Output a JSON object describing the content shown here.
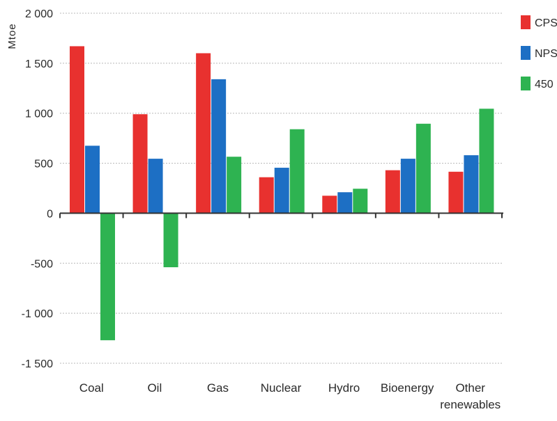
{
  "chart_data": {
    "type": "bar",
    "ylabel": "Mtoe",
    "categories": [
      "Coal",
      "Oil",
      "Gas",
      "Nuclear",
      "Hydro",
      "Bioenergy",
      "Other renewables"
    ],
    "category_lines": [
      [
        "Coal"
      ],
      [
        "Oil"
      ],
      [
        "Gas"
      ],
      [
        "Nuclear"
      ],
      [
        "Hydro"
      ],
      [
        "Bioenergy"
      ],
      [
        "Other",
        "renewables"
      ]
    ],
    "series": [
      {
        "name": "CPS",
        "color": "#e8312f",
        "values": [
          1670,
          990,
          1600,
          360,
          175,
          430,
          415
        ]
      },
      {
        "name": "NPS",
        "color": "#1d6fc4",
        "values": [
          675,
          545,
          1340,
          455,
          210,
          545,
          580
        ]
      },
      {
        "name": "450",
        "color": "#2eb351",
        "values": [
          -1270,
          -540,
          565,
          840,
          245,
          895,
          1045
        ]
      }
    ],
    "ylim": [
      -1500,
      2000
    ],
    "yticks": [
      2000,
      1500,
      1000,
      500,
      0,
      -500,
      -1000,
      -1500
    ],
    "ytick_labels": [
      "2 000",
      "1 500",
      "1 000",
      "500",
      "0",
      "-500",
      "-1 000",
      "-1 500"
    ],
    "grid": true,
    "legend_position": "right"
  }
}
